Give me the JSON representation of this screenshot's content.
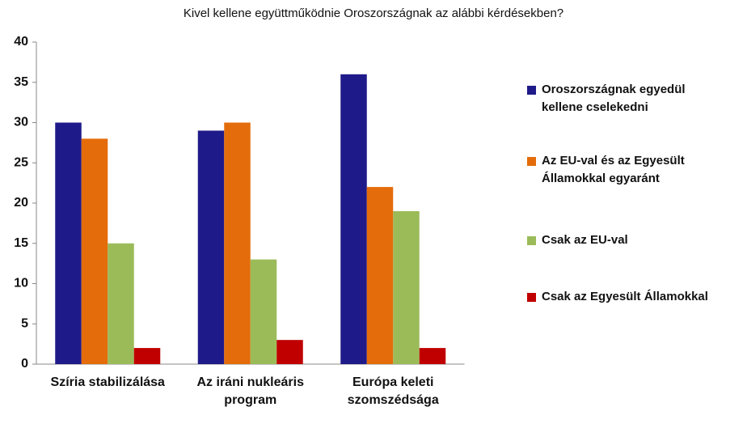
{
  "chart_data": {
    "type": "bar",
    "title": "Kivel kellene együttműködnie Oroszországnak az alábbi kérdésekben?",
    "categories": [
      "Szíria stabilizálása",
      "Az iráni nukleáris program",
      "Európa keleti szomszédsága"
    ],
    "series": [
      {
        "name": "Oroszországnak egyedül kellene cselekedni",
        "color": "#1f1a8a",
        "values": [
          30,
          29,
          36
        ]
      },
      {
        "name": "Az EU-val és az Egyesült Államokkal egyaránt",
        "color": "#e46c0a",
        "values": [
          28,
          30,
          22
        ]
      },
      {
        "name": "Csak az EU-val",
        "color": "#9bbb59",
        "values": [
          15,
          13,
          19
        ]
      },
      {
        "name": "Csak az Egyesült Államokkal",
        "color": "#c00000",
        "values": [
          2,
          3,
          2
        ]
      }
    ],
    "ylim": [
      0,
      40
    ],
    "yticks": [
      0,
      5,
      10,
      15,
      20,
      25,
      30,
      35,
      40
    ],
    "grid": false,
    "legend": "right"
  }
}
